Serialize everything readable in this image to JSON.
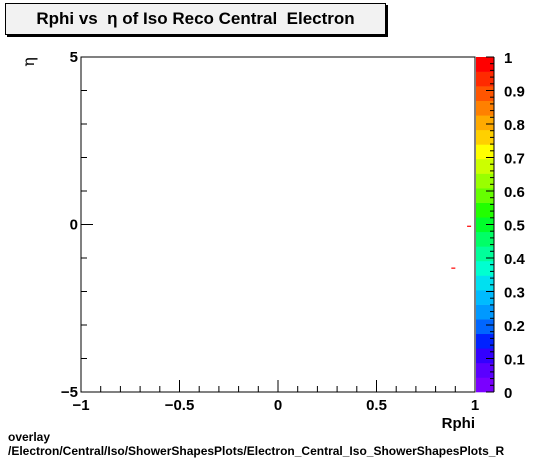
{
  "title": "Rphi vs  η of Iso Reco Central  Electron",
  "footer": {
    "line1": "overlay",
    "line2": "/Electron/Central/Iso/ShowerShapesPlots/Electron_Central_Iso_ShowerShapesPlots_R"
  },
  "chart_data": {
    "type": "heatmap",
    "title": "Rphi vs  η of Iso Reco Central  Electron",
    "xlabel": "Rphi",
    "ylabel": "η",
    "xlim": [
      -1,
      1
    ],
    "ylim": [
      -5,
      5
    ],
    "x_ticks": [
      "−1",
      "−0.5",
      "0",
      "0.5",
      "1"
    ],
    "x_tick_values": [
      -1,
      -0.5,
      0,
      0.5,
      1
    ],
    "y_ticks": [
      "−5",
      "0",
      "5"
    ],
    "y_tick_values": [
      -5,
      0,
      5
    ],
    "colorbar": {
      "range": [
        0,
        1
      ],
      "labels": [
        "0",
        "0.1",
        "0.2",
        "0.3",
        "0.4",
        "0.5",
        "0.6",
        "0.7",
        "0.8",
        "0.9",
        "1"
      ],
      "colors": [
        "#7a00ff",
        "#5a00ff",
        "#3300ff",
        "#0022ff",
        "#0066ff",
        "#0099ff",
        "#00bbff",
        "#00e0f0",
        "#00ffd0",
        "#00ff9a",
        "#00ff66",
        "#00ff2a",
        "#22ff00",
        "#66ff00",
        "#99ff00",
        "#ccff00",
        "#ffff00",
        "#ffd000",
        "#ffaa00",
        "#ff8000",
        "#ff5500",
        "#ff2a00",
        "#ff0000"
      ]
    },
    "grid": false,
    "legend": "none",
    "points": [
      {
        "x": 0.97,
        "y": -0.05,
        "value": 1,
        "color": "#ff0000"
      },
      {
        "x": 0.89,
        "y": -1.3,
        "value": 1,
        "color": "#ff0000"
      }
    ]
  }
}
